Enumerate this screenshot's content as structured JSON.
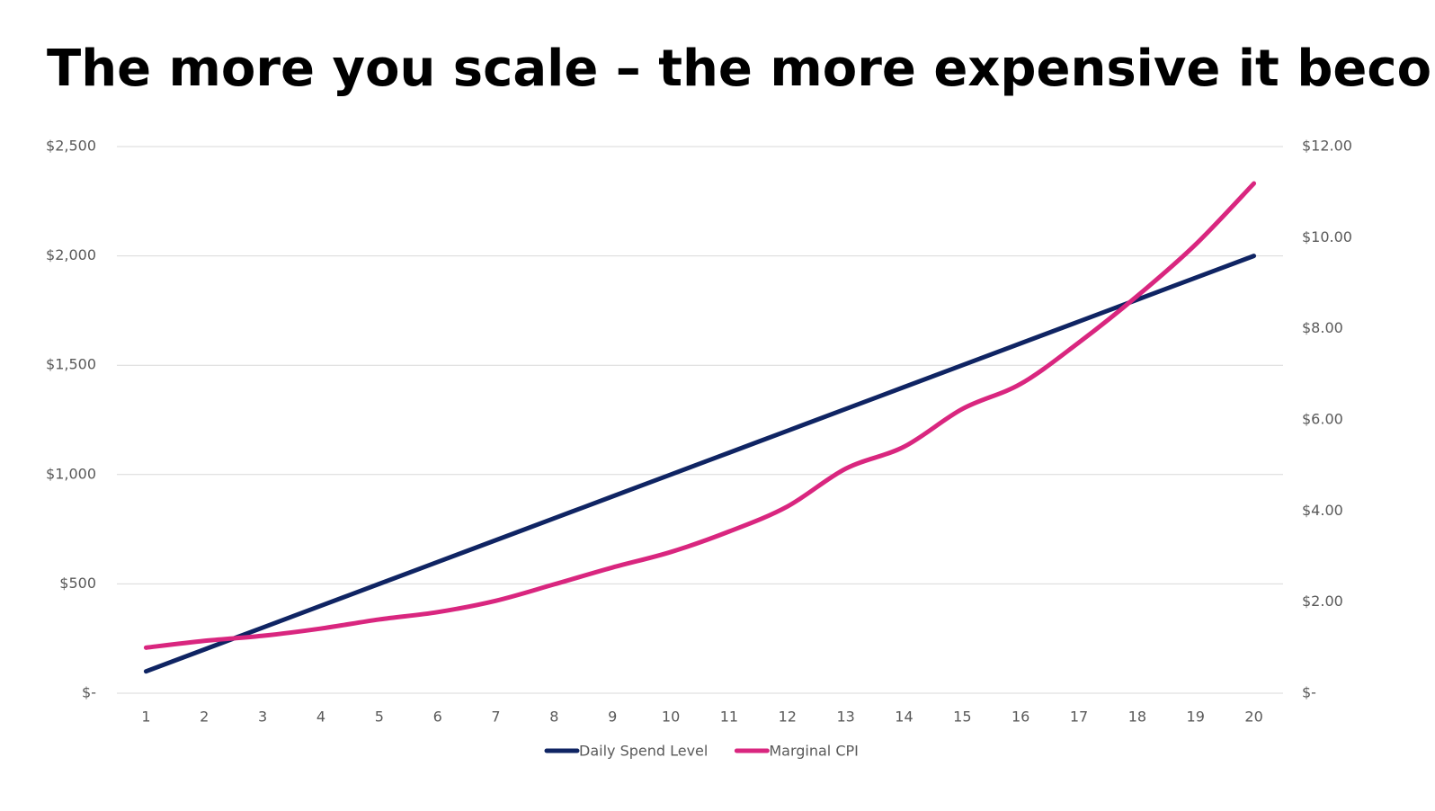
{
  "chart_data": {
    "type": "line",
    "title": "The more you scale – the more expensive it becomes",
    "categories": [
      "1",
      "2",
      "3",
      "4",
      "5",
      "6",
      "7",
      "8",
      "9",
      "10",
      "11",
      "12",
      "13",
      "14",
      "15",
      "16",
      "17",
      "18",
      "19",
      "20"
    ],
    "series": [
      {
        "name": "Daily Spend Level",
        "color": "#0f2463",
        "values": [
          100,
          200,
          300,
          400,
          500,
          600,
          700,
          800,
          900,
          1000,
          1100,
          1200,
          1300,
          1400,
          1500,
          1600,
          1700,
          1800,
          1900,
          2000
        ]
      },
      {
        "name": "Marginal CPI",
        "color": "#d9267f",
        "axis": "y2",
        "values": [
          1.0,
          1.15,
          1.26,
          1.42,
          1.62,
          1.78,
          2.03,
          2.39,
          2.76,
          3.1,
          3.55,
          4.1,
          4.93,
          5.41,
          6.24,
          6.79,
          7.7,
          8.72,
          9.85,
          11.19
        ]
      }
    ],
    "ylim": [
      0,
      2500
    ],
    "yticks": [
      {
        "value": 0,
        "label": "$-"
      },
      {
        "value": 500,
        "label": "$500"
      },
      {
        "value": 1000,
        "label": "$1,000"
      },
      {
        "value": 1500,
        "label": "$1,500"
      },
      {
        "value": 2000,
        "label": "$2,000"
      },
      {
        "value": 2500,
        "label": "$2,500"
      }
    ],
    "y2lim": [
      0,
      12
    ],
    "y2ticks": [
      {
        "value": 0,
        "label": "$-"
      },
      {
        "value": 2,
        "label": "$2.00"
      },
      {
        "value": 4,
        "label": "$4.00"
      },
      {
        "value": 6,
        "label": "$6.00"
      },
      {
        "value": 8,
        "label": "$8.00"
      },
      {
        "value": 10,
        "label": "$10.00"
      },
      {
        "value": 12,
        "label": "$12.00"
      }
    ],
    "grid": true,
    "legend": "bottom"
  }
}
